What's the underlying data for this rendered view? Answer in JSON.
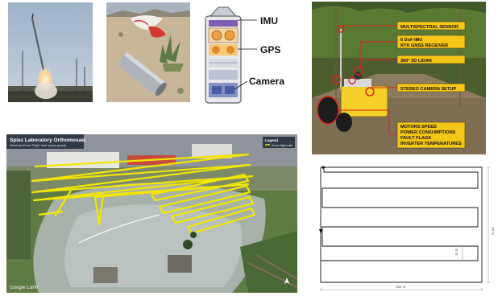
{
  "diagram": {
    "labels": [
      "IMU",
      "GPS",
      "Camera"
    ]
  },
  "robot": {
    "callouts": [
      [
        "MULTISPECTRAL SENSOR"
      ],
      [
        "6 DoF IMU",
        "RTK GNSS RECEIVER"
      ],
      [
        "360° 3D LIDAR"
      ],
      [
        "STEREO CAMERA SETUP"
      ],
      [
        "MOTORS SPEED",
        "POWER CONSUMPTIONS",
        "FAULT FLAGS",
        "INVERTER TEMPERATURES"
      ]
    ]
  },
  "orthomosaic": {
    "title": "Spiez Laboratory Orthomosaic",
    "subtitle": "Aerial and Drone Flight, from source ground",
    "legend_title": "Legend",
    "legend_item": "Drone flight path",
    "watermark": "Google Earth"
  },
  "path_plan": {
    "width_label": "150 m",
    "height_label": "70 m",
    "spacing_label": "10 m"
  }
}
